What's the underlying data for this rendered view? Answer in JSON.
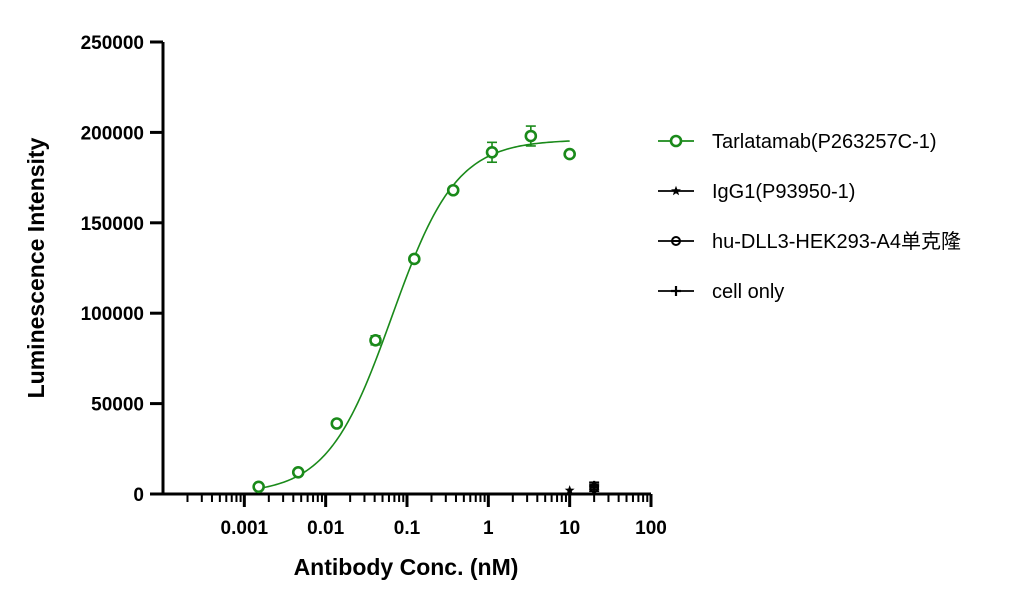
{
  "chart_data": {
    "type": "scatter",
    "xlabel": "Antibody Conc. (nM)",
    "ylabel": "Luminescence Intensity",
    "xscale": "log",
    "xlim": [
      0.0001,
      100
    ],
    "ylim": [
      0,
      250000
    ],
    "x_ticks": [
      "0.001",
      "0.01",
      "0.1",
      "1",
      "10",
      "100"
    ],
    "y_ticks": [
      "0",
      "50000",
      "100000",
      "150000",
      "200000",
      "250000"
    ],
    "grid": false,
    "legend_position": "right",
    "series": [
      {
        "name": "Tarlatamab(P263257C-1)",
        "color": "#1a8a1a",
        "marker": "open-circle",
        "fit": "4PL",
        "fit_params": {
          "bottom": 0,
          "top": 196000,
          "ec50": 0.065,
          "hill": 1.1
        },
        "points": [
          {
            "x": 0.0015,
            "y": 4000,
            "err": 0
          },
          {
            "x": 0.0046,
            "y": 12000,
            "err": 0
          },
          {
            "x": 0.0137,
            "y": 39000,
            "err": 0
          },
          {
            "x": 0.041,
            "y": 85000,
            "err": 2500
          },
          {
            "x": 0.123,
            "y": 130000,
            "err": 0
          },
          {
            "x": 0.37,
            "y": 168000,
            "err": 0
          },
          {
            "x": 1.11,
            "y": 189000,
            "err": 5500
          },
          {
            "x": 3.33,
            "y": 198000,
            "err": 5500
          },
          {
            "x": 10,
            "y": 188000,
            "err": 0
          }
        ]
      },
      {
        "name": "IgG1(P93950-1)",
        "color": "#000000",
        "marker": "star",
        "points": [
          {
            "x": 10,
            "y": 2000,
            "err": 0
          }
        ]
      },
      {
        "name": "hu-DLL3-HEK293-A4单克隆",
        "color": "#000000",
        "marker": "half-filled-circle",
        "points": [
          {
            "x": 20,
            "y": 3500,
            "err": 2000
          }
        ]
      },
      {
        "name": "cell only",
        "color": "#000000",
        "marker": "plus",
        "points": [
          {
            "x": 20,
            "y": 4500,
            "err": 2000
          }
        ]
      }
    ]
  }
}
